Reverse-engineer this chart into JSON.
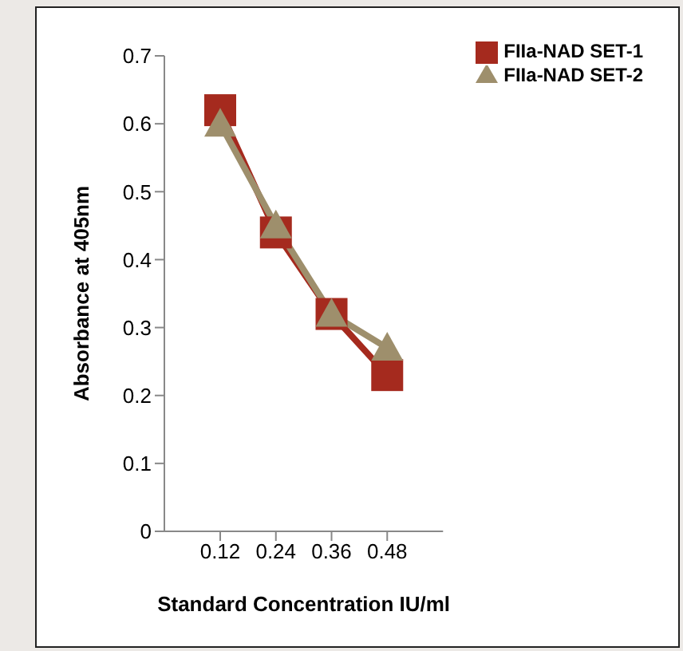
{
  "chart_data": {
    "type": "line",
    "xlabel": "Standard Concentration IU/ml",
    "ylabel": "Absorbance at 405nm",
    "categories": [
      "0.12",
      "0.24",
      "0.36",
      "0.48"
    ],
    "series": [
      {
        "name": "FIIa-NAD SET-1",
        "color": "#a52a1e",
        "values": [
          0.62,
          0.44,
          0.32,
          0.23
        ],
        "marker": "square"
      },
      {
        "name": "FIIa-NAD SET-2",
        "color": "#9e8f6c",
        "values": [
          0.6,
          0.45,
          0.32,
          0.27
        ],
        "marker": "triangle"
      }
    ],
    "ylim": [
      0,
      0.7
    ],
    "yticks": [
      0,
      0.1,
      0.2,
      0.3,
      0.4,
      0.5,
      0.6,
      0.7
    ],
    "grid": false,
    "legend": "top right",
    "line_style": "solid"
  }
}
